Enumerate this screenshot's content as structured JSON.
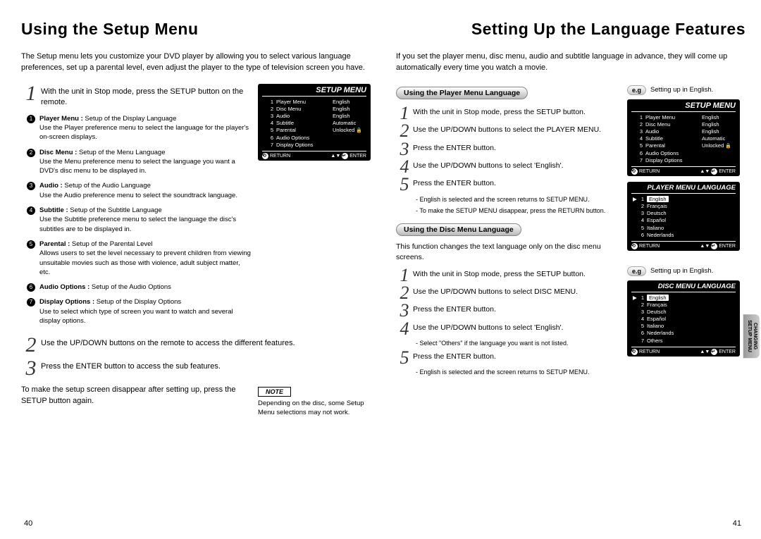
{
  "left": {
    "title": "Using the Setup Menu",
    "intro": "The Setup menu lets you customize your DVD player by allowing you to select various language preferences, set up a parental level, even adjust the player to the type of television screen you have.",
    "step1_num": "1",
    "step1": "With the unit in Stop mode, press the SETUP button on the remote.",
    "bullets": [
      {
        "title": "Player Menu :",
        "desc": "Setup of the Display Language",
        "desc2": "Use the Player preference menu to select the language for the player's on-screen displays."
      },
      {
        "title": "Disc Menu :",
        "desc": "Setup of the Menu Language",
        "desc2": "Use the Menu preference menu to select the language you want a DVD's disc menu to be displayed in."
      },
      {
        "title": "Audio :",
        "desc": "Setup of the Audio Language",
        "desc2": "Use the Audio preference menu to select the soundtrack language."
      },
      {
        "title": "Subtitle :",
        "desc": "Setup of the Subtitle Language",
        "desc2": "Use the Subtitle preference menu to select the language the disc's subtitles are to be displayed in."
      },
      {
        "title": "Parental :",
        "desc": "Setup of the Parental Level",
        "desc2": "Allows users to set the level necessary to prevent children from viewing unsuitable movies such as those with violence, adult subject matter, etc."
      },
      {
        "title": "Audio Options :",
        "desc": "Setup of the Audio Options",
        "desc2": ""
      },
      {
        "title": "Display Options :",
        "desc": "Setup of the Display Options",
        "desc2": "Use to select which type of screen you want to watch and several display options."
      }
    ],
    "step2_num": "2",
    "step2": "Use the UP/DOWN buttons on the remote to access the different features.",
    "step3_num": "3",
    "step3": "Press the ENTER button to access the sub features.",
    "after": "To make the setup screen disappear after setting up, press the SETUP button again.",
    "note_label": "NOTE",
    "note_text": "Depending on the disc, some Setup Menu selections may not work.",
    "page_num": "40"
  },
  "right": {
    "title": "Setting Up the Language Features",
    "intro": "If you set the player menu, disc menu, audio and subtitle language in advance, they will come up automatically every time you watch a movie.",
    "eg_label": "e.g",
    "eg_text": "Setting up in English.",
    "sect1_head": "Using the Player Menu Language",
    "sect1_steps": [
      "With the unit in Stop mode, press the SETUP button.",
      "Use the UP/DOWN buttons to select the PLAYER MENU.",
      "Press the ENTER button.",
      "Use the UP/DOWN buttons to select 'English'.",
      "Press the ENTER button."
    ],
    "sect1_sub": [
      "- English is selected and the screen returns to SETUP MENU.",
      "- To make the SETUP MENU disappear, press the RETURN button."
    ],
    "sect2_head": "Using the Disc Menu Language",
    "sect2_desc": "This function changes the text language only on the disc menu screens.",
    "sect2_steps": [
      "With the unit in Stop mode, press the SETUP button.",
      "Use the UP/DOWN buttons to select DISC MENU.",
      "Press the ENTER button.",
      "Use the UP/DOWN buttons to select 'English'."
    ],
    "sect2_sub1": "- Select \"Others\" if the language you want is not listed.",
    "sect2_step5": "Press the ENTER button.",
    "sect2_sub2": "- English is selected and the screen returns to SETUP MENU.",
    "page_num": "41",
    "side_tab1": "CHANGING",
    "side_tab2": "SETUP MENU"
  },
  "osd": {
    "setup_title": "SETUP MENU",
    "return": "RETURN",
    "enter": "ENTER",
    "rows": [
      {
        "n": "1",
        "l": "Player Menu",
        "v": "English"
      },
      {
        "n": "2",
        "l": "Disc Menu",
        "v": "English"
      },
      {
        "n": "3",
        "l": "Audio",
        "v": "English"
      },
      {
        "n": "4",
        "l": "Subtitle",
        "v": "Automatic"
      },
      {
        "n": "5",
        "l": "Parental",
        "v": "Unlocked"
      },
      {
        "n": "6",
        "l": "Audio Options",
        "v": ""
      },
      {
        "n": "7",
        "l": "Display Options",
        "v": ""
      }
    ],
    "player_lang_title": "PLAYER MENU LANGUAGE",
    "player_langs": [
      {
        "n": "1",
        "l": "English",
        "sel": true
      },
      {
        "n": "2",
        "l": "Français"
      },
      {
        "n": "3",
        "l": "Deutsch"
      },
      {
        "n": "4",
        "l": "Español"
      },
      {
        "n": "5",
        "l": "Italiano"
      },
      {
        "n": "6",
        "l": "Nederlands"
      }
    ],
    "disc_lang_title": "DISC MENU LANGUAGE",
    "disc_langs": [
      {
        "n": "1",
        "l": "English",
        "sel": true
      },
      {
        "n": "2",
        "l": "Français"
      },
      {
        "n": "3",
        "l": "Deutsch"
      },
      {
        "n": "4",
        "l": "Español"
      },
      {
        "n": "5",
        "l": "Italiano"
      },
      {
        "n": "6",
        "l": "Nederlands"
      },
      {
        "n": "7",
        "l": "Others"
      }
    ]
  },
  "nums": [
    "1",
    "2",
    "3",
    "4",
    "5",
    "6",
    "7"
  ]
}
